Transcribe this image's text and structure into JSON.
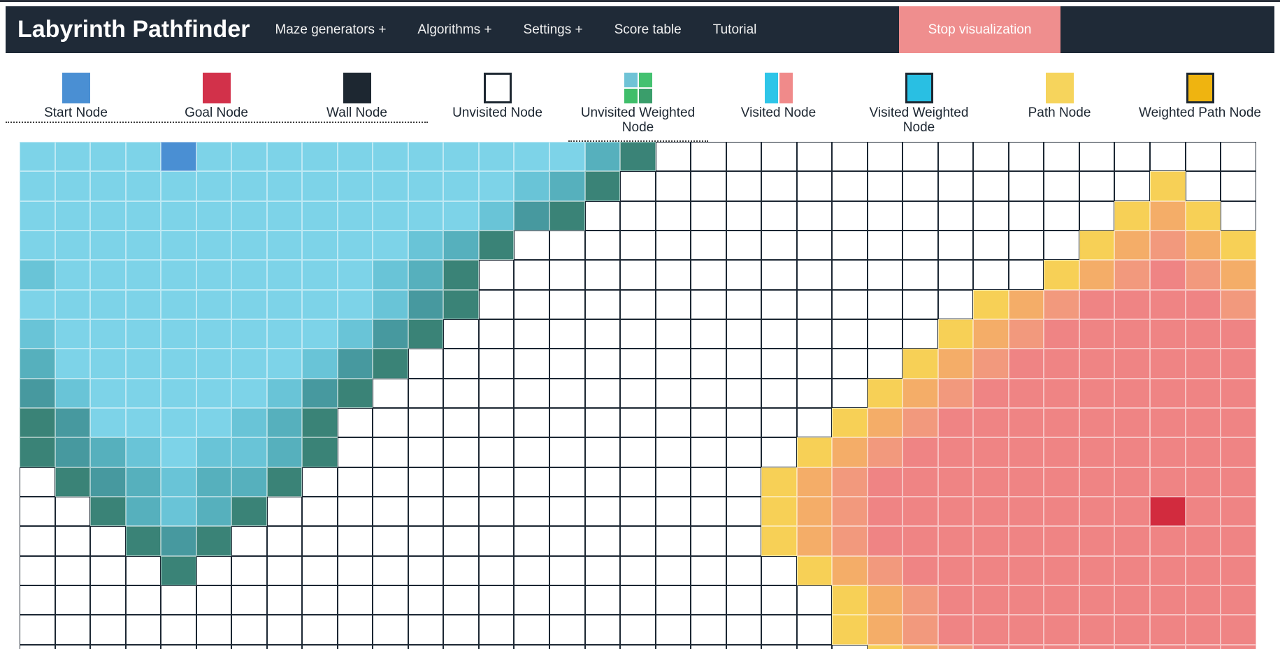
{
  "navbar": {
    "title": "Labyrinth Pathfinder",
    "items": [
      {
        "id": "maze-generators",
        "label": "Maze generators +"
      },
      {
        "id": "algorithms",
        "label": "Algorithms +"
      },
      {
        "id": "settings",
        "label": "Settings +"
      },
      {
        "id": "score-table",
        "label": "Score table"
      },
      {
        "id": "tutorial",
        "label": "Tutorial"
      }
    ],
    "stop_button_label": "Stop visualization",
    "colors": {
      "bg": "#1f2a37",
      "stop_bg": "#ef8e8e",
      "text": "#f1f1f1"
    }
  },
  "legend": {
    "items": [
      {
        "type": "start",
        "label": "Start Node",
        "color": "#4a8fd3"
      },
      {
        "type": "goal",
        "label": "Goal Node",
        "color": "#d2314a"
      },
      {
        "type": "wall",
        "label": "Wall Node",
        "color": "#1d2731"
      },
      {
        "type": "unvisited",
        "label": "Unvisited Node",
        "color": "#ffffff",
        "border": "#1d2731"
      },
      {
        "type": "unvisited-weighted",
        "label": "Unvisited Weighted Node",
        "colors": [
          "#6fc3d6",
          "#44c170",
          "#3fbe6a",
          "#3a9e6b"
        ]
      },
      {
        "type": "visited",
        "label": "Visited Node",
        "colors": [
          "#2ec5e8",
          "#f08a8a"
        ]
      },
      {
        "type": "visited-weighted",
        "label": "Visited Weighted Node",
        "color": "#29bfe3",
        "border": "#1d2731"
      },
      {
        "type": "path",
        "label": "Path Node",
        "color": "#f6d45c"
      },
      {
        "type": "weighted-path",
        "label": "Weighted Path Node",
        "color": "#efb410",
        "border": "#1d2731"
      }
    ]
  },
  "grid": {
    "cols": 35,
    "rows": 18,
    "palette": {
      "1": "#7dd3e8",
      "2": "#69c4d7",
      "3": "#56b0bd",
      "4": "#47999f",
      "5": "#3a8377",
      "a": "#f7d056",
      "b": "#f4ad68",
      "c": "#f2997d",
      "d": "#ef8484",
      "S": "#4a8fd3",
      "G": "#d22b3e",
      ".": "#ffffff"
    },
    "legend_of_codes": {
      "1": "visited-oldest-cyan",
      "2": "visited-cyan",
      "3": "visited-mid-teal",
      "4": "visited-dark-teal",
      "5": "visited-frontier-teal",
      "a": "visited-frontier-yellow",
      "b": "visited-orange",
      "c": "visited-orange-salmon",
      "d": "visited-salmon",
      "S": "start-node",
      "G": "goal-node",
      ".": "unvisited"
    },
    "cells": [
      "1111S1111111111135.................",
      "11111111111111235...............a..",
      "1111111111111245...............aba.",
      "11111111111235................abcba",
      "2111111111235................abcdcb",
      "1111111111245..............abcddddc",
      "211111111245..............abcdddddd",
      "31111111245..............abcddddddd",
      "4211111245..............abcdddddddd",
      "541111235..............abcddddddddd",
      "543212235.............abcdddddddddd",
      ".5432335.............abcddddddddddd",
      "..53235..............abcddddddddGdd",
      "...545...............abcddddddddddd",
      "....5.................abcdddddddddd",
      ".......................abcddddddddd",
      ".......................abcddddddddd",
      "........................abcdddddddd"
    ]
  }
}
